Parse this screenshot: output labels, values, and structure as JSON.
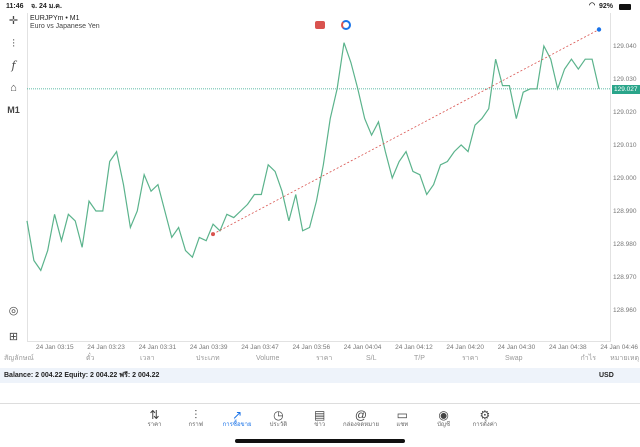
{
  "status": {
    "time": "11:46",
    "date": "จ. 24 ม.ค.",
    "battery": "92%"
  },
  "symbol": {
    "title": "EURJPYm • M1",
    "description": "Euro vs Japanese Yen"
  },
  "left_toolbar": {
    "timeframe": "M1"
  },
  "colors": {
    "line": "#5bb38c",
    "current_price": "#2aa58a",
    "trend_start": "#d9534f",
    "trend_end": "#1a73e8",
    "accent": "#1a73e8"
  },
  "chart_data": {
    "type": "line",
    "ylim": [
      128.955,
      129.049
    ],
    "y_ticks": [
      "129.040",
      "129.030",
      "129.020",
      "129.010",
      "129.000",
      "128.990",
      "128.980",
      "128.970",
      "128.960"
    ],
    "x_ticks": [
      "24 Jan 03:15",
      "24 Jan 03:23",
      "24 Jan 03:31",
      "24 Jan 03:39",
      "24 Jan 03:47",
      "24 Jan 03:56",
      "24 Jan 04:04",
      "24 Jan 04:12",
      "24 Jan 04:20",
      "24 Jan 04:30",
      "24 Jan 04:38",
      "24 Jan 04:46"
    ],
    "current_price": "129.027",
    "values": [
      128.987,
      128.975,
      128.972,
      128.978,
      128.989,
      128.981,
      128.989,
      128.987,
      128.979,
      128.993,
      128.99,
      128.99,
      129.005,
      129.008,
      128.998,
      128.985,
      128.99,
      129.001,
      128.996,
      128.998,
      128.99,
      128.982,
      128.985,
      128.978,
      128.976,
      128.982,
      128.981,
      128.986,
      128.984,
      128.989,
      128.988,
      128.99,
      128.992,
      128.995,
      128.995,
      129.004,
      129.002,
      128.996,
      128.987,
      128.995,
      128.984,
      128.985,
      128.993,
      129.004,
      129.018,
      129.027,
      129.041,
      129.035,
      129.027,
      129.018,
      129.013,
      129.017,
      129.008,
      129.0,
      129.005,
      129.008,
      129.002,
      129.001,
      128.995,
      128.998,
      129.004,
      129.005,
      129.008,
      129.01,
      129.008,
      129.016,
      129.018,
      129.021,
      129.036,
      129.028,
      129.028,
      129.018,
      129.026,
      129.027,
      129.027,
      129.04,
      129.036,
      129.027,
      129.033,
      129.036,
      129.033,
      129.036,
      129.036,
      129.027
    ],
    "trendline": {
      "start": 128.983,
      "end": 129.045
    }
  },
  "table": {
    "columns": [
      "สัญลักษณ์",
      "ตั๋ว",
      "เวลา",
      "ประเภท",
      "Volume",
      "ราคา",
      "S/L",
      "T/P",
      "ราคา",
      "Swap",
      "กำไร",
      "หมายเหตุ"
    ]
  },
  "balance": {
    "text": "Balance: 2 004.22 Equity: 2 004.22 ฟรี: 2 004.22",
    "currency": "USD"
  },
  "tabs": [
    {
      "label": "ราคา",
      "icon": "arrows-up-down-icon"
    },
    {
      "label": "กราฟ",
      "icon": "candles-icon"
    },
    {
      "label": "การซื้อขาย",
      "icon": "trade-chart-icon"
    },
    {
      "label": "ประวัติ",
      "icon": "history-icon"
    },
    {
      "label": "ข่าว",
      "icon": "news-icon"
    },
    {
      "label": "กล่องจดหมาย",
      "icon": "mail-at-icon"
    },
    {
      "label": "แชท",
      "icon": "chat-icon"
    },
    {
      "label": "บัญชี",
      "icon": "account-icon"
    },
    {
      "label": "การตั้งค่า",
      "icon": "gear-icon"
    }
  ]
}
